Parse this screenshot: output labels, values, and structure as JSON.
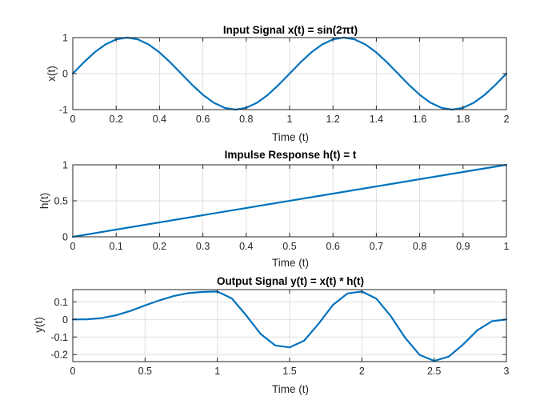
{
  "colors": {
    "line": "#0072BD",
    "axis": "#262626",
    "grid": "#dfdfdf",
    "background": "#ffffff"
  },
  "chart_data": [
    {
      "type": "line",
      "title": "Input Signal x(t) = sin(2πt)",
      "xlabel": "Time (t)",
      "ylabel": "x(t)",
      "xlim": [
        0,
        2
      ],
      "ylim": [
        -1,
        1
      ],
      "xticks": [
        0,
        0.2,
        0.4,
        0.6,
        0.8,
        1,
        1.2,
        1.4,
        1.6,
        1.8,
        2
      ],
      "xtick_labels": [
        "0",
        "0.2",
        "0.4",
        "0.6",
        "0.8",
        "1",
        "1.2",
        "1.4",
        "1.6",
        "1.8",
        "2"
      ],
      "yticks": [
        -1,
        0,
        1
      ],
      "ytick_labels": [
        "-1",
        "0",
        "1"
      ],
      "grid": true,
      "series": [
        {
          "x": [
            0,
            0.05,
            0.1,
            0.15,
            0.2,
            0.25,
            0.3,
            0.35,
            0.4,
            0.45,
            0.5,
            0.55,
            0.6,
            0.65,
            0.7,
            0.75,
            0.8,
            0.85,
            0.9,
            0.95,
            1.0,
            1.05,
            1.1,
            1.15,
            1.2,
            1.25,
            1.3,
            1.35,
            1.4,
            1.45,
            1.5,
            1.55,
            1.6,
            1.65,
            1.7,
            1.75,
            1.8,
            1.85,
            1.9,
            1.95,
            2.0
          ],
          "y": [
            0,
            0.309,
            0.588,
            0.809,
            0.951,
            1.0,
            0.951,
            0.809,
            0.588,
            0.309,
            0,
            -0.309,
            -0.588,
            -0.809,
            -0.951,
            -1.0,
            -0.951,
            -0.809,
            -0.588,
            -0.309,
            0,
            0.309,
            0.588,
            0.809,
            0.951,
            1.0,
            0.951,
            0.809,
            0.588,
            0.309,
            0,
            -0.309,
            -0.588,
            -0.809,
            -0.951,
            -1.0,
            -0.951,
            -0.809,
            -0.588,
            -0.309,
            0
          ]
        }
      ]
    },
    {
      "type": "line",
      "title": "Impulse Response h(t) = t",
      "xlabel": "Time (t)",
      "ylabel": "h(t)",
      "xlim": [
        0,
        1
      ],
      "ylim": [
        0,
        1
      ],
      "xticks": [
        0,
        0.1,
        0.2,
        0.3,
        0.4,
        0.5,
        0.6,
        0.7,
        0.8,
        0.9,
        1
      ],
      "xtick_labels": [
        "0",
        "0.1",
        "0.2",
        "0.3",
        "0.4",
        "0.5",
        "0.6",
        "0.7",
        "0.8",
        "0.9",
        "1"
      ],
      "yticks": [
        0,
        0.5,
        1
      ],
      "ytick_labels": [
        "0",
        "0.5",
        "1"
      ],
      "grid": true,
      "series": [
        {
          "x": [
            0,
            1
          ],
          "y": [
            0,
            1
          ]
        }
      ]
    },
    {
      "type": "line",
      "title": "Output Signal y(t) = x(t) * h(t)",
      "xlabel": "Time (t)",
      "ylabel": "y(t)",
      "xlim": [
        0,
        3
      ],
      "ylim": [
        -0.24,
        0.17
      ],
      "xticks": [
        0,
        0.5,
        1,
        1.5,
        2,
        2.5,
        3
      ],
      "xtick_labels": [
        "0",
        "0.5",
        "1",
        "1.5",
        "2",
        "2.5",
        "3"
      ],
      "yticks": [
        -0.2,
        -0.1,
        0,
        0.1
      ],
      "ytick_labels": [
        "-0.2",
        "-0.1",
        "0",
        "0.1"
      ],
      "grid": true,
      "series": [
        {
          "x": [
            0,
            0.1,
            0.2,
            0.3,
            0.4,
            0.5,
            0.6,
            0.7,
            0.8,
            0.9,
            1.0,
            1.1,
            1.2,
            1.3,
            1.4,
            1.5,
            1.6,
            1.7,
            1.8,
            1.9,
            2.0,
            2.1,
            2.2,
            2.3,
            2.4,
            2.5,
            2.6,
            2.7,
            2.8,
            2.9,
            3.0
          ],
          "y": [
            0,
            0.001,
            0.008,
            0.024,
            0.049,
            0.08,
            0.109,
            0.134,
            0.15,
            0.157,
            0.159,
            0.12,
            0.023,
            -0.083,
            -0.148,
            -0.159,
            -0.121,
            -0.025,
            0.083,
            0.148,
            0.159,
            0.119,
            0.019,
            -0.105,
            -0.202,
            -0.236,
            -0.212,
            -0.143,
            -0.061,
            -0.01,
            0
          ]
        }
      ]
    }
  ]
}
